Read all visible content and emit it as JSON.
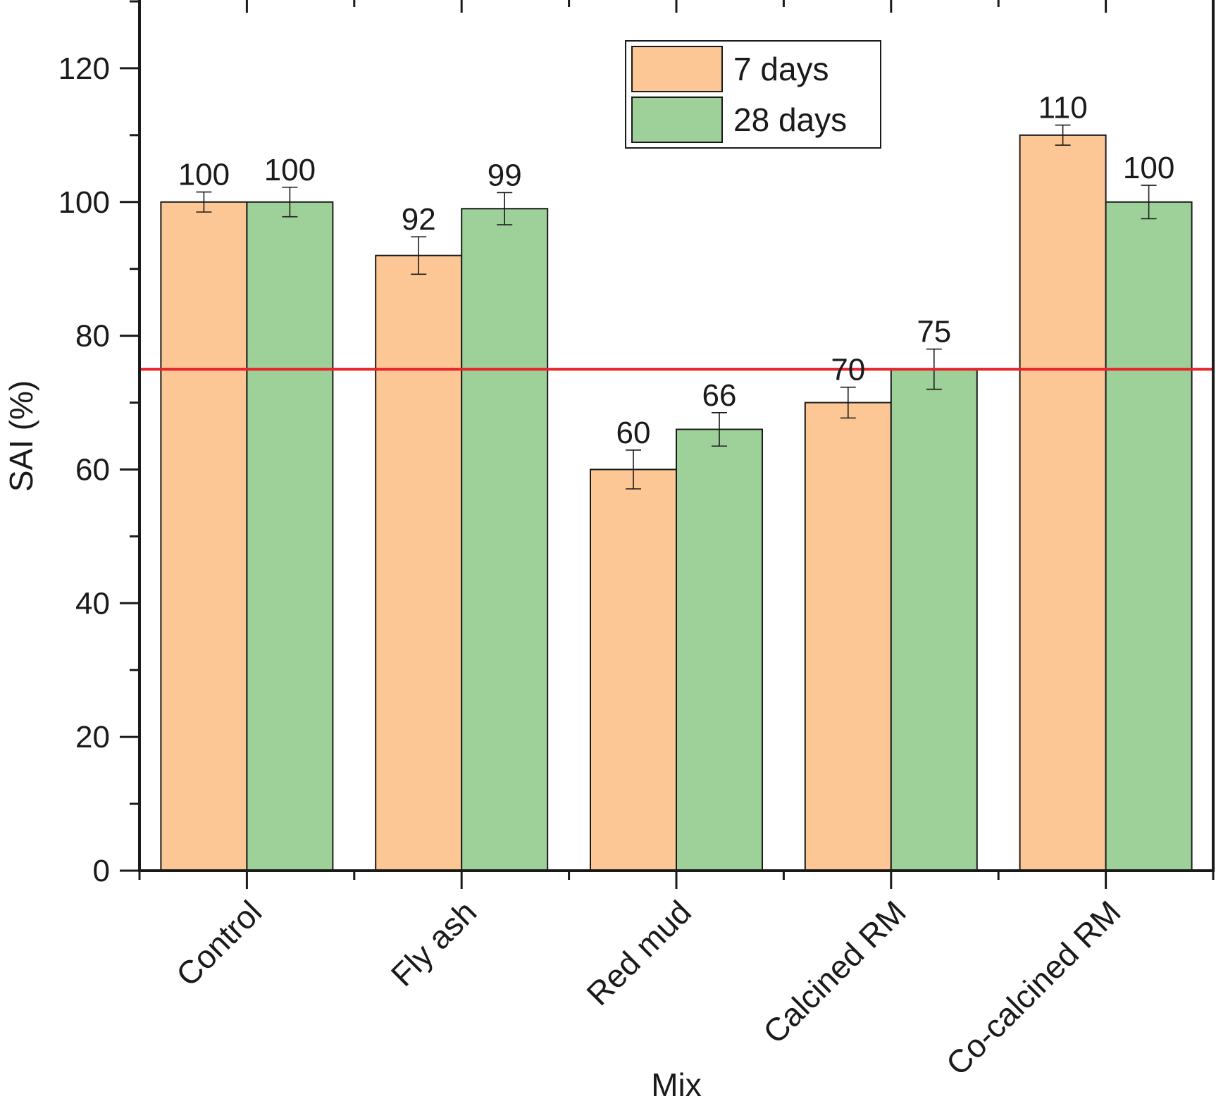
{
  "chart_data": {
    "type": "bar",
    "title": "",
    "xlabel": "Mix",
    "ylabel": "SAI (%)",
    "ylim": [
      0,
      130
    ],
    "yticks": [
      0,
      20,
      40,
      60,
      80,
      100,
      120
    ],
    "categories": [
      "Control",
      "Fly ash",
      "Red mud",
      "Calcined RM",
      "Co-calcined RM"
    ],
    "series": [
      {
        "name": "7 days",
        "color": "#fdc795",
        "values": [
          100,
          92,
          60,
          70,
          110
        ],
        "errors": [
          1.5,
          2.8,
          2.9,
          2.3,
          1.5
        ],
        "labels": [
          "100",
          "92",
          "60",
          "70",
          "110"
        ]
      },
      {
        "name": "28 days",
        "color": "#9ed19a",
        "values": [
          100,
          99,
          66,
          75,
          100
        ],
        "errors": [
          2.2,
          2.4,
          2.5,
          3.0,
          2.5
        ],
        "labels": [
          "100",
          "99",
          "66",
          "75",
          "100"
        ]
      }
    ],
    "reference_line": {
      "value": 75,
      "color": "#e8232a"
    },
    "legend_position": "top-center",
    "grid": false
  }
}
